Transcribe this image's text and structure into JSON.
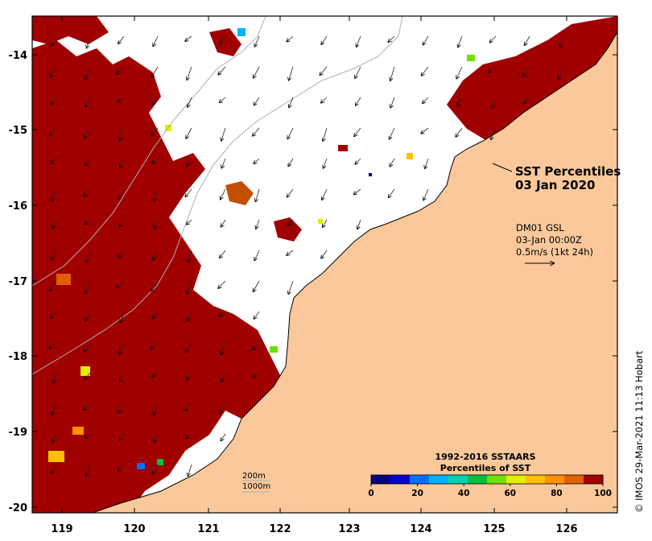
{
  "map": {
    "title_line1": "SST Percentiles",
    "title_line2": "03 Jan 2020",
    "info_line1": "DM01 GSL",
    "info_line2": "03-Jan 00:00Z",
    "info_line3": "0.5m/s (1kt 24h)",
    "credit": "© IMOS 29-Mar-2021 11:13 Hobart",
    "depth_label_1": "200m",
    "depth_label_2": "1000m",
    "land_color": "#fac89a",
    "ocean_color": "#ffffff",
    "longitude_ticks": [
      "119",
      "120",
      "121",
      "122",
      "123",
      "124",
      "125",
      "126"
    ],
    "latitude_ticks": [
      "-14",
      "-15",
      "-16",
      "-17",
      "-18",
      "-19",
      "-20"
    ]
  },
  "colorbar": {
    "title_line1": "1992-2016 SSTAARS",
    "title_line2": "Percentiles of SST",
    "tick_labels": [
      "0",
      "20",
      "40",
      "60",
      "80",
      "100"
    ],
    "colors": [
      "#00007f",
      "#0000d0",
      "#0070ff",
      "#00b0ff",
      "#00d0b0",
      "#00c040",
      "#70e000",
      "#e0f000",
      "#ffc000",
      "#ff9000",
      "#e06000",
      "#a00000"
    ]
  }
}
